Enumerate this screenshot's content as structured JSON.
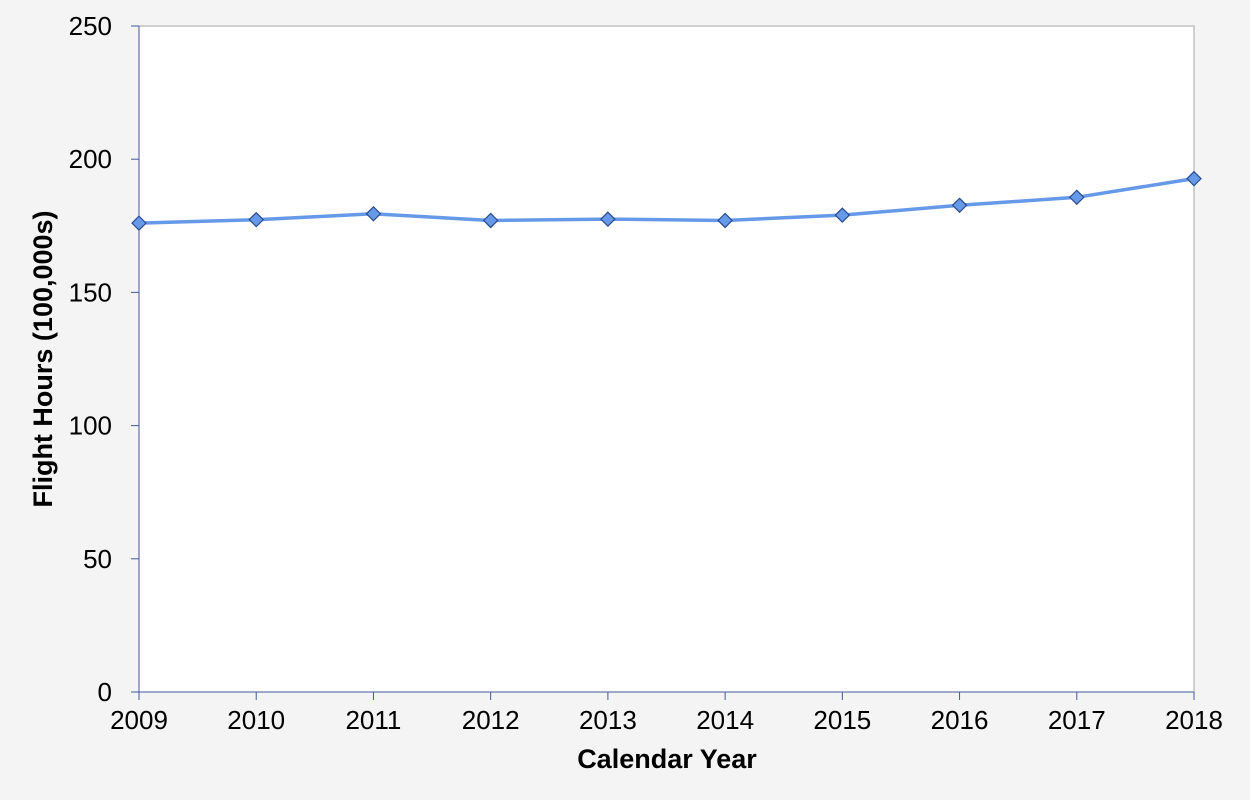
{
  "chart_data": {
    "type": "line",
    "title": "",
    "xlabel": "Calendar Year",
    "ylabel": "Flight Hours (100,000s)",
    "x": [
      "2009",
      "2010",
      "2011",
      "2012",
      "2013",
      "2014",
      "2015",
      "2016",
      "2017",
      "2018"
    ],
    "series": [
      {
        "values": [
          176.0,
          177.3,
          179.5,
          177.0,
          177.5,
          177.0,
          179.0,
          182.7,
          185.7,
          192.7
        ],
        "color": "#6699e8",
        "marker": "diamond"
      }
    ],
    "ylim": [
      0,
      250
    ],
    "yticks": [
      0,
      50,
      100,
      150,
      200,
      250
    ],
    "grid": false,
    "legend": "none"
  }
}
